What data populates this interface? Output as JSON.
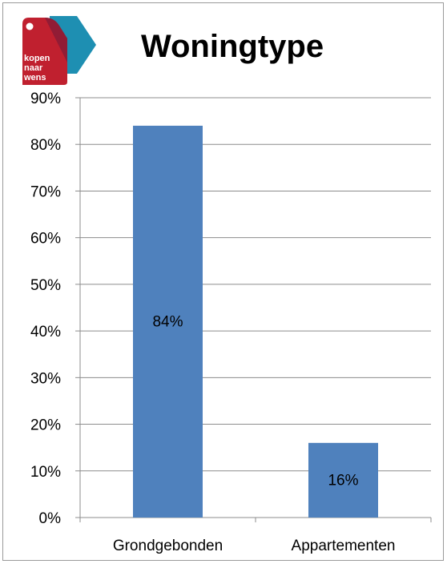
{
  "logo": {
    "line1": "kopen",
    "line2": "naar",
    "line3": "wens",
    "colors": {
      "red": "#c0202f",
      "teal": "#1e8fb2"
    }
  },
  "chart_data": {
    "type": "bar",
    "title": "Woningtype",
    "categories": [
      "Grondgebonden",
      "Appartementen"
    ],
    "values": [
      84,
      16
    ],
    "value_labels": [
      "84%",
      "16%"
    ],
    "ylim": [
      0,
      90
    ],
    "yticks": [
      0,
      10,
      20,
      30,
      40,
      50,
      60,
      70,
      80,
      90
    ],
    "ytick_labels": [
      "0%",
      "10%",
      "20%",
      "30%",
      "40%",
      "50%",
      "60%",
      "70%",
      "80%",
      "90%"
    ],
    "xlabel": "",
    "ylabel": "",
    "grid": true,
    "legend": "none",
    "bar_color": "#4f81bd"
  }
}
